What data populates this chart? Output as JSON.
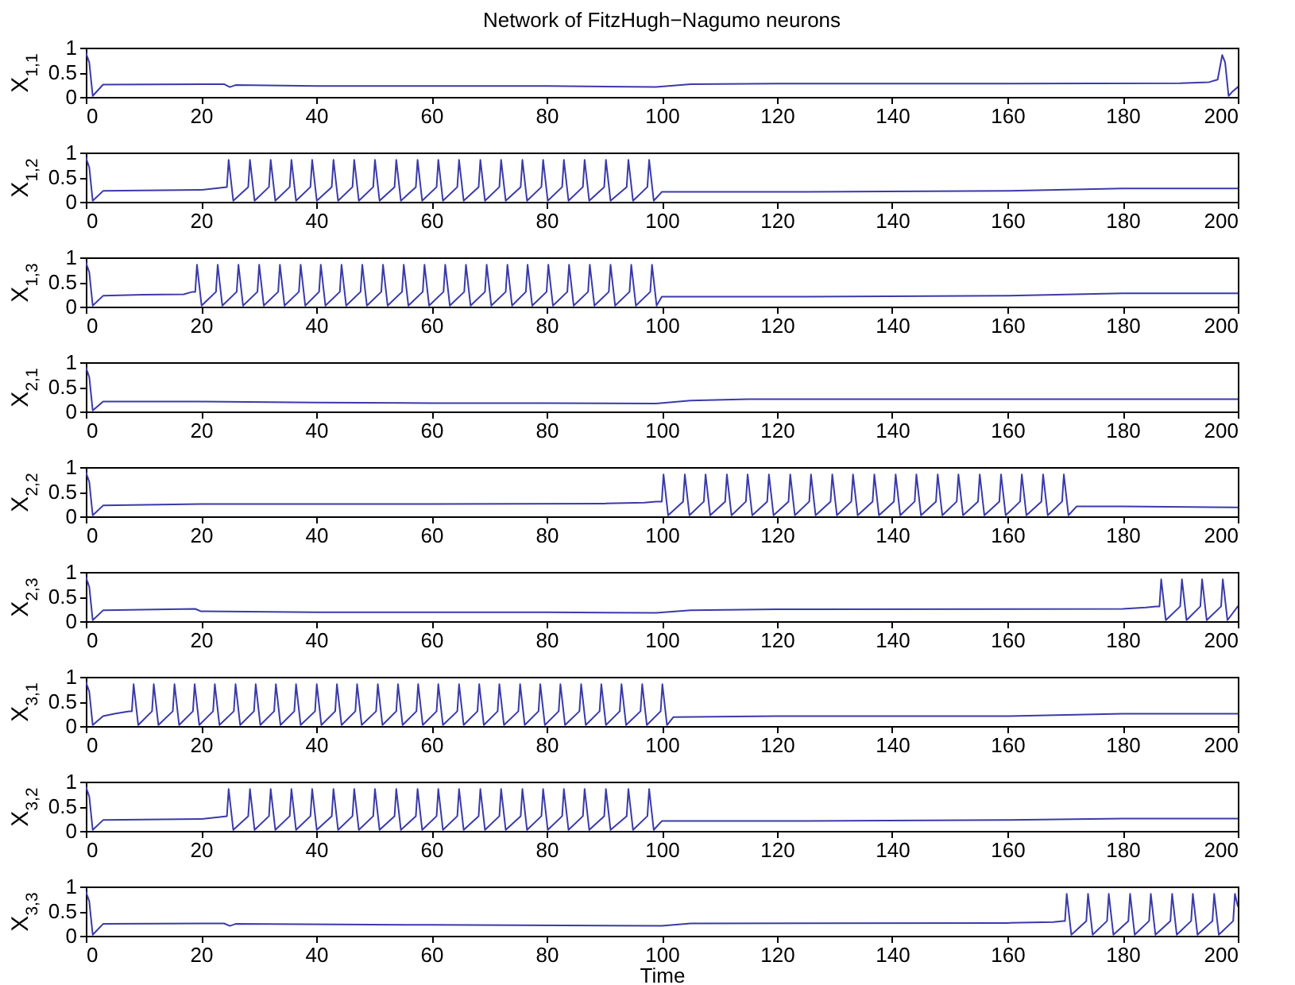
{
  "chart_data": [
    {
      "type": "line",
      "title": "Network of FitzHugh−Nagumo neurons",
      "ylabel": "X$_{1,1}$",
      "xlim": [
        0,
        200
      ],
      "xticks": [
        0,
        20,
        40,
        60,
        80,
        100,
        120,
        140,
        160,
        180,
        200
      ],
      "ylim": [
        0,
        1
      ],
      "yticks": [
        0,
        0.5,
        1
      ],
      "series": [
        {
          "color": "#3a3aaa",
          "x": [
            0,
            0.6,
            1.2,
            3,
            24,
            25,
            26,
            40,
            60,
            80,
            99,
            105,
            120,
            160,
            190,
            195,
            196.5,
            197.3,
            197.8,
            198.4,
            199,
            200
          ],
          "values": [
            0.9,
            0.7,
            0.02,
            0.25,
            0.26,
            0.2,
            0.24,
            0.22,
            0.22,
            0.22,
            0.2,
            0.26,
            0.27,
            0.27,
            0.28,
            0.3,
            0.35,
            0.85,
            0.7,
            0.02,
            0.1,
            0.2
          ]
        }
      ]
    },
    {
      "type": "line",
      "ylabel": "X$_{1,2}$",
      "xlim": [
        0,
        200
      ],
      "xticks": [
        0,
        20,
        40,
        60,
        80,
        100,
        120,
        140,
        160,
        180,
        200
      ],
      "ylim": [
        0,
        1
      ],
      "yticks": [
        0,
        0.5,
        1
      ],
      "series": [
        {
          "color": "#3a3aaa",
          "x": [
            0,
            0.6,
            1.2,
            3,
            20,
            23,
            24.5,
            24.8,
            25.6,
            28.2,
            28.5,
            29.3,
            31.8,
            32.1,
            32.9,
            35.4,
            35.7,
            36.5,
            39.0,
            39.3,
            40.1,
            42.7,
            43.0,
            43.8,
            46.3,
            46.6,
            47.4,
            49.9,
            50.2,
            51.0,
            53.6,
            53.9,
            54.7,
            57.3,
            57.6,
            58.4,
            60.9,
            61.2,
            62.0,
            64.5,
            64.8,
            65.6,
            68.2,
            68.5,
            69.3,
            71.8,
            72.1,
            72.9,
            75.5,
            75.8,
            76.6,
            79.1,
            79.4,
            80.2,
            82.7,
            83.0,
            83.8,
            86.3,
            86.6,
            87.4,
            90.0,
            90.3,
            91.1,
            93.9,
            94.2,
            95.0,
            97.5,
            97.8,
            98.6,
            100,
            120,
            160,
            180,
            200
          ],
          "values": [
            0.9,
            0.7,
            0.02,
            0.22,
            0.24,
            0.28,
            0.3,
            0.85,
            0.02,
            0.3,
            0.85,
            0.02,
            0.3,
            0.85,
            0.02,
            0.3,
            0.85,
            0.02,
            0.3,
            0.85,
            0.02,
            0.3,
            0.85,
            0.02,
            0.3,
            0.85,
            0.02,
            0.3,
            0.85,
            0.02,
            0.3,
            0.85,
            0.02,
            0.3,
            0.85,
            0.02,
            0.3,
            0.85,
            0.02,
            0.3,
            0.85,
            0.02,
            0.3,
            0.85,
            0.02,
            0.3,
            0.85,
            0.02,
            0.3,
            0.85,
            0.02,
            0.3,
            0.85,
            0.02,
            0.3,
            0.85,
            0.02,
            0.3,
            0.85,
            0.02,
            0.3,
            0.85,
            0.02,
            0.3,
            0.85,
            0.02,
            0.3,
            0.85,
            0.02,
            0.2,
            0.2,
            0.22,
            0.27,
            0.27
          ]
        }
      ]
    },
    {
      "type": "line",
      "ylabel": "X$_{1,3}$",
      "xlim": [
        0,
        200
      ],
      "xticks": [
        0,
        20,
        40,
        60,
        80,
        100,
        120,
        140,
        160,
        180,
        200
      ],
      "ylim": [
        0,
        1
      ],
      "yticks": [
        0,
        0.5,
        1
      ],
      "series": [
        {
          "color": "#3a3aaa",
          "x": [
            0,
            0.6,
            1.2,
            3,
            10,
            17,
            18.5,
            19.0,
            19.3,
            20.1,
            22.6,
            22.9,
            23.7,
            26.2,
            26.5,
            27.3,
            29.8,
            30.1,
            30.9,
            33.4,
            33.7,
            34.5,
            37.0,
            37.3,
            38.1,
            40.5,
            40.8,
            41.6,
            44.1,
            44.4,
            45.2,
            47.7,
            48.0,
            48.8,
            51.3,
            51.6,
            52.4,
            54.9,
            55.2,
            56.0,
            58.5,
            58.8,
            59.6,
            62.1,
            62.4,
            63.2,
            65.7,
            66.0,
            66.8,
            69.3,
            69.6,
            70.4,
            72.9,
            73.2,
            74.0,
            76.4,
            76.7,
            77.5,
            80.0,
            80.3,
            81.1,
            83.6,
            83.9,
            84.7,
            87.2,
            87.5,
            88.3,
            90.8,
            91.1,
            91.9,
            94.4,
            94.7,
            95.5,
            98.0,
            98.3,
            99.1,
            100,
            120,
            160,
            180,
            200
          ],
          "values": [
            0.9,
            0.7,
            0.02,
            0.22,
            0.24,
            0.25,
            0.3,
            0.3,
            0.85,
            0.02,
            0.3,
            0.85,
            0.02,
            0.3,
            0.85,
            0.02,
            0.3,
            0.85,
            0.02,
            0.3,
            0.85,
            0.02,
            0.3,
            0.85,
            0.02,
            0.3,
            0.85,
            0.02,
            0.3,
            0.85,
            0.02,
            0.3,
            0.85,
            0.02,
            0.3,
            0.85,
            0.02,
            0.3,
            0.85,
            0.02,
            0.3,
            0.85,
            0.02,
            0.3,
            0.85,
            0.02,
            0.3,
            0.85,
            0.02,
            0.3,
            0.85,
            0.02,
            0.3,
            0.85,
            0.02,
            0.3,
            0.85,
            0.02,
            0.3,
            0.85,
            0.02,
            0.3,
            0.85,
            0.02,
            0.3,
            0.85,
            0.02,
            0.3,
            0.85,
            0.02,
            0.3,
            0.85,
            0.02,
            0.3,
            0.85,
            0.02,
            0.2,
            0.2,
            0.22,
            0.27,
            0.27
          ]
        }
      ]
    },
    {
      "type": "line",
      "ylabel": "X$_{2,1}$",
      "xlim": [
        0,
        200
      ],
      "xticks": [
        0,
        20,
        40,
        60,
        80,
        100,
        120,
        140,
        160,
        180,
        200
      ],
      "ylim": [
        0,
        1
      ],
      "yticks": [
        0,
        0.5,
        1
      ],
      "series": [
        {
          "color": "#3a3aaa",
          "x": [
            0,
            0.6,
            1.2,
            3,
            20,
            40,
            60,
            80,
            99,
            105,
            115,
            200
          ],
          "values": [
            0.9,
            0.7,
            0.02,
            0.2,
            0.2,
            0.18,
            0.17,
            0.17,
            0.16,
            0.22,
            0.25,
            0.25
          ]
        }
      ]
    },
    {
      "type": "line",
      "ylabel": "X$_{2,2}$",
      "xlim": [
        0,
        200
      ],
      "xticks": [
        0,
        20,
        40,
        60,
        80,
        100,
        120,
        140,
        160,
        180,
        200
      ],
      "ylim": [
        0,
        1
      ],
      "yticks": [
        0,
        0.5,
        1
      ],
      "series": [
        {
          "color": "#3a3aaa",
          "x": [
            0,
            0.6,
            1.2,
            3,
            20,
            60,
            90,
            97,
            99,
            100.0,
            100.3,
            101.1,
            103.7,
            104.0,
            104.8,
            107.3,
            107.6,
            108.4,
            111.0,
            111.3,
            112.1,
            114.6,
            114.9,
            115.7,
            118.3,
            118.6,
            119.4,
            122.0,
            122.3,
            123.1,
            125.6,
            125.9,
            126.7,
            129.3,
            129.6,
            130.4,
            132.9,
            133.2,
            134.0,
            136.6,
            136.9,
            137.7,
            140.3,
            140.6,
            141.4,
            143.9,
            144.2,
            145.0,
            147.6,
            147.9,
            148.7,
            151.2,
            151.5,
            152.3,
            154.9,
            155.2,
            156.0,
            158.6,
            158.9,
            159.7,
            162.2,
            162.5,
            163.3,
            165.9,
            166.2,
            167.0,
            169.5,
            169.8,
            170.6,
            172,
            180,
            200
          ],
          "values": [
            0.9,
            0.7,
            0.02,
            0.22,
            0.25,
            0.25,
            0.26,
            0.28,
            0.3,
            0.3,
            0.85,
            0.02,
            0.3,
            0.85,
            0.02,
            0.3,
            0.85,
            0.02,
            0.3,
            0.85,
            0.02,
            0.3,
            0.85,
            0.02,
            0.3,
            0.85,
            0.02,
            0.3,
            0.85,
            0.02,
            0.3,
            0.85,
            0.02,
            0.3,
            0.85,
            0.02,
            0.3,
            0.85,
            0.02,
            0.3,
            0.85,
            0.02,
            0.3,
            0.85,
            0.02,
            0.3,
            0.85,
            0.02,
            0.3,
            0.85,
            0.02,
            0.3,
            0.85,
            0.02,
            0.3,
            0.85,
            0.02,
            0.3,
            0.85,
            0.02,
            0.3,
            0.85,
            0.02,
            0.3,
            0.85,
            0.02,
            0.3,
            0.85,
            0.02,
            0.2,
            0.2,
            0.18
          ]
        }
      ]
    },
    {
      "type": "line",
      "ylabel": "X$_{2,3}$",
      "xlim": [
        0,
        200
      ],
      "xticks": [
        0,
        20,
        40,
        60,
        80,
        100,
        120,
        140,
        160,
        180,
        200
      ],
      "ylim": [
        0,
        1
      ],
      "yticks": [
        0,
        0.5,
        1
      ],
      "series": [
        {
          "color": "#3a3aaa",
          "x": [
            0,
            0.6,
            1.2,
            3,
            19,
            20,
            40,
            60,
            80,
            99,
            105,
            120,
            180,
            184,
            185.8,
            186.4,
            186.7,
            187.5,
            190.0,
            190.3,
            191.1,
            193.5,
            193.8,
            194.6,
            197.1,
            197.4,
            198.2,
            200
          ],
          "values": [
            0.9,
            0.7,
            0.02,
            0.22,
            0.25,
            0.2,
            0.18,
            0.18,
            0.18,
            0.17,
            0.22,
            0.24,
            0.25,
            0.28,
            0.3,
            0.3,
            0.85,
            0.02,
            0.3,
            0.85,
            0.02,
            0.3,
            0.85,
            0.02,
            0.3,
            0.85,
            0.02,
            0.3
          ]
        }
      ]
    },
    {
      "type": "line",
      "ylabel": "X$_{3,1}$",
      "xlim": [
        0,
        200
      ],
      "xticks": [
        0,
        20,
        40,
        60,
        80,
        100,
        120,
        140,
        160,
        180,
        200
      ],
      "ylim": [
        0,
        1
      ],
      "yticks": [
        0,
        0.5,
        1
      ],
      "series": [
        {
          "color": "#3a3aaa",
          "x": [
            0,
            0.6,
            1.2,
            3,
            5,
            7.5,
            8.0,
            8.3,
            9.1,
            11.5,
            11.8,
            12.6,
            15.1,
            15.4,
            16.2,
            18.6,
            18.9,
            19.7,
            22.1,
            22.4,
            23.2,
            25.7,
            26.0,
            26.8,
            29.2,
            29.5,
            30.3,
            32.7,
            33.0,
            33.8,
            36.2,
            36.5,
            37.3,
            39.8,
            40.1,
            40.9,
            43.3,
            43.6,
            44.4,
            46.8,
            47.1,
            47.9,
            50.4,
            50.7,
            51.5,
            53.9,
            54.2,
            55.0,
            57.4,
            57.7,
            58.5,
            60.9,
            61.2,
            62.0,
            64.5,
            64.8,
            65.6,
            68.0,
            68.3,
            69.1,
            71.5,
            71.8,
            72.6,
            75.1,
            75.4,
            76.2,
            78.6,
            78.9,
            79.7,
            82.1,
            82.4,
            83.2,
            85.7,
            86.0,
            86.8,
            89.2,
            89.5,
            90.3,
            92.7,
            93.0,
            93.8,
            96.3,
            96.6,
            97.4,
            99.8,
            100.1,
            100.9,
            102,
            120,
            160,
            180,
            200
          ],
          "values": [
            0.9,
            0.7,
            0.02,
            0.2,
            0.25,
            0.3,
            0.3,
            0.85,
            0.02,
            0.3,
            0.85,
            0.02,
            0.3,
            0.85,
            0.02,
            0.3,
            0.85,
            0.02,
            0.3,
            0.85,
            0.02,
            0.3,
            0.85,
            0.02,
            0.3,
            0.85,
            0.02,
            0.3,
            0.85,
            0.02,
            0.3,
            0.85,
            0.02,
            0.3,
            0.85,
            0.02,
            0.3,
            0.85,
            0.02,
            0.3,
            0.85,
            0.02,
            0.3,
            0.85,
            0.02,
            0.3,
            0.85,
            0.02,
            0.3,
            0.85,
            0.02,
            0.3,
            0.85,
            0.02,
            0.3,
            0.85,
            0.02,
            0.3,
            0.85,
            0.02,
            0.3,
            0.85,
            0.02,
            0.3,
            0.85,
            0.02,
            0.3,
            0.85,
            0.02,
            0.3,
            0.85,
            0.02,
            0.3,
            0.85,
            0.02,
            0.3,
            0.85,
            0.02,
            0.3,
            0.85,
            0.02,
            0.3,
            0.85,
            0.02,
            0.3,
            0.85,
            0.02,
            0.18,
            0.2,
            0.2,
            0.25,
            0.25
          ]
        }
      ]
    },
    {
      "type": "line",
      "ylabel": "X$_{3,2}$",
      "xlim": [
        0,
        200
      ],
      "xticks": [
        0,
        20,
        40,
        60,
        80,
        100,
        120,
        140,
        160,
        180,
        200
      ],
      "ylim": [
        0,
        1
      ],
      "yticks": [
        0,
        0.5,
        1
      ],
      "series": [
        {
          "color": "#3a3aaa",
          "x": [
            0,
            0.6,
            1.2,
            3,
            20,
            23,
            24.5,
            24.8,
            25.6,
            28.2,
            28.5,
            29.3,
            31.8,
            32.1,
            32.9,
            35.4,
            35.7,
            36.5,
            39.0,
            39.3,
            40.1,
            42.7,
            43.0,
            43.8,
            46.3,
            46.6,
            47.4,
            49.9,
            50.2,
            51.0,
            53.6,
            53.9,
            54.7,
            57.3,
            57.6,
            58.4,
            60.9,
            61.2,
            62.0,
            64.5,
            64.8,
            65.6,
            68.2,
            68.5,
            69.3,
            71.8,
            72.1,
            72.9,
            75.5,
            75.8,
            76.6,
            79.1,
            79.4,
            80.2,
            82.7,
            83.0,
            83.8,
            86.3,
            86.6,
            87.4,
            90.0,
            90.3,
            91.1,
            93.9,
            94.2,
            95.0,
            97.5,
            97.8,
            98.6,
            100,
            120,
            160,
            180,
            200
          ],
          "values": [
            0.9,
            0.7,
            0.02,
            0.22,
            0.24,
            0.28,
            0.3,
            0.85,
            0.02,
            0.3,
            0.85,
            0.02,
            0.3,
            0.85,
            0.02,
            0.3,
            0.85,
            0.02,
            0.3,
            0.85,
            0.02,
            0.3,
            0.85,
            0.02,
            0.3,
            0.85,
            0.02,
            0.3,
            0.85,
            0.02,
            0.3,
            0.85,
            0.02,
            0.3,
            0.85,
            0.02,
            0.3,
            0.85,
            0.02,
            0.3,
            0.85,
            0.02,
            0.3,
            0.85,
            0.02,
            0.3,
            0.85,
            0.02,
            0.3,
            0.85,
            0.02,
            0.3,
            0.85,
            0.02,
            0.3,
            0.85,
            0.02,
            0.3,
            0.85,
            0.02,
            0.3,
            0.85,
            0.02,
            0.3,
            0.85,
            0.02,
            0.3,
            0.85,
            0.02,
            0.2,
            0.2,
            0.22,
            0.25,
            0.25
          ]
        }
      ]
    },
    {
      "type": "line",
      "ylabel": "X$_{3,3}$",
      "xlabel": "Time",
      "xlim": [
        0,
        200
      ],
      "xticks": [
        0,
        20,
        40,
        60,
        80,
        100,
        120,
        140,
        160,
        180,
        200
      ],
      "ylim": [
        0,
        1
      ],
      "yticks": [
        0,
        0.5,
        1
      ],
      "series": [
        {
          "color": "#3a3aaa",
          "x": [
            0,
            0.6,
            1.2,
            3,
            24,
            25,
            26,
            60,
            100,
            105,
            160,
            168,
            169.7,
            170.0,
            170.3,
            171.1,
            173.7,
            174.0,
            174.8,
            177.3,
            177.6,
            178.4,
            181.0,
            181.3,
            182.1,
            184.6,
            184.9,
            185.7,
            188.3,
            188.6,
            189.4,
            191.9,
            192.2,
            193.0,
            195.6,
            195.9,
            196.7,
            199.2,
            199.5,
            200
          ],
          "values": [
            0.9,
            0.7,
            0.02,
            0.24,
            0.25,
            0.2,
            0.24,
            0.22,
            0.2,
            0.25,
            0.26,
            0.28,
            0.3,
            0.3,
            0.85,
            0.02,
            0.3,
            0.85,
            0.02,
            0.3,
            0.85,
            0.02,
            0.3,
            0.85,
            0.02,
            0.3,
            0.85,
            0.02,
            0.3,
            0.85,
            0.02,
            0.3,
            0.85,
            0.02,
            0.3,
            0.85,
            0.02,
            0.3,
            0.85,
            0.6
          ]
        }
      ]
    }
  ]
}
